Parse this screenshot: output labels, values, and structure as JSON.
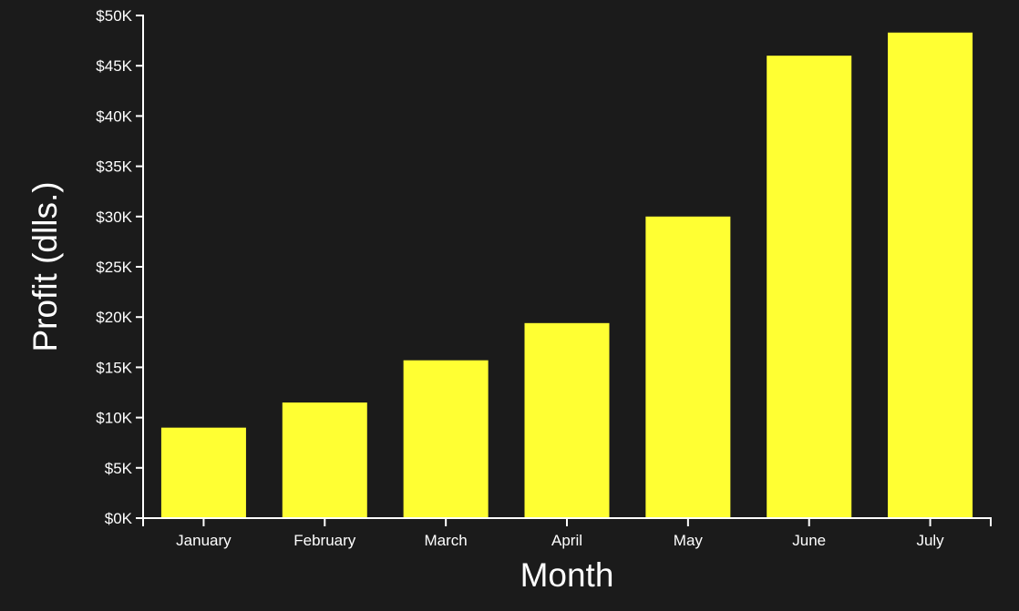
{
  "chart_data": {
    "type": "bar",
    "categories": [
      "January",
      "February",
      "March",
      "April",
      "May",
      "June",
      "July"
    ],
    "values": [
      9000,
      11500,
      15700,
      19400,
      30000,
      46000,
      48300
    ],
    "xlabel": "Month",
    "ylabel": "Profit (dlls.)",
    "ylim": [
      0,
      50000
    ],
    "yticks": [
      0,
      5000,
      10000,
      15000,
      20000,
      25000,
      30000,
      35000,
      40000,
      45000,
      50000
    ],
    "ytick_labels": [
      "$0K",
      "$5K",
      "$10K",
      "$15K",
      "$20K",
      "$25K",
      "$30K",
      "$35K",
      "$40K",
      "$45K",
      "$50K"
    ],
    "grid": false,
    "bar_color": "#ffff33",
    "background_color": "#1b1b1b",
    "text_color": "#ffffff"
  }
}
